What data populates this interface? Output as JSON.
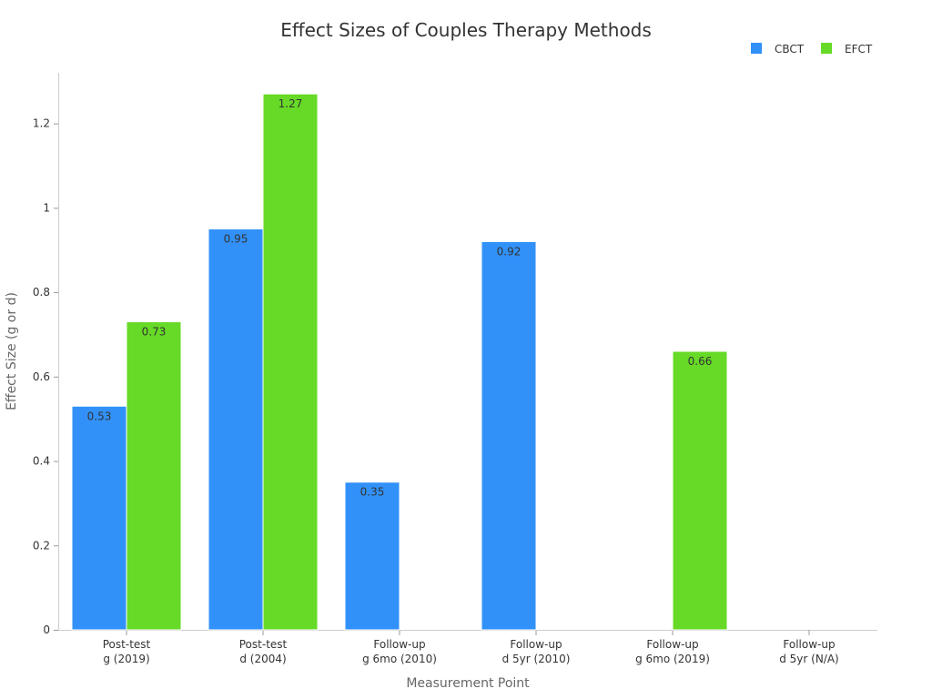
{
  "chart_data": {
    "type": "bar",
    "title": "Effect Sizes of Couples Therapy Methods",
    "xlabel": "Measurement Point",
    "ylabel": "Effect Size (g or d)",
    "categories": [
      [
        "Post-test",
        "g (2019)"
      ],
      [
        "Post-test",
        "d (2004)"
      ],
      [
        "Follow-up",
        "g 6mo (2010)"
      ],
      [
        "Follow-up",
        "d 5yr (2010)"
      ],
      [
        "Follow-up",
        "g 6mo (2019)"
      ],
      [
        "Follow-up",
        "d 5yr (N/A)"
      ]
    ],
    "series": [
      {
        "name": "CBCT",
        "color": "#3191F8",
        "values": [
          0.53,
          0.95,
          0.35,
          0.92,
          null,
          null
        ]
      },
      {
        "name": "EFCT",
        "color": "#66DA26",
        "values": [
          0.73,
          1.27,
          null,
          null,
          0.66,
          null
        ]
      }
    ],
    "ylim": [
      0,
      1.32
    ],
    "yticks": [
      "0",
      "0.2",
      "0.4",
      "0.6",
      "0.8",
      "1",
      "1.2"
    ],
    "legend_position": "top-right",
    "grid": false
  }
}
